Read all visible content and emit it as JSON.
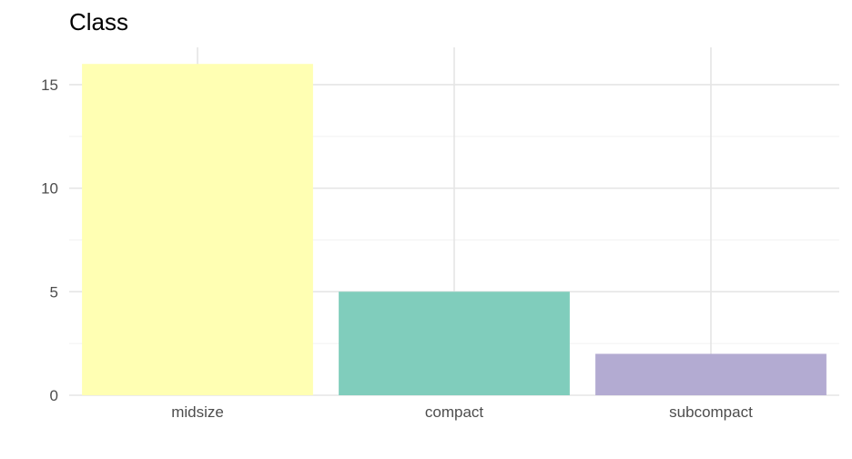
{
  "chart_data": {
    "type": "bar",
    "title": "Class",
    "xlabel": "",
    "ylabel": "",
    "categories": [
      "midsize",
      "compact",
      "subcompact"
    ],
    "values": [
      16,
      5,
      2
    ],
    "colors": [
      "#ffffb3",
      "#80cdbc",
      "#b3abd2"
    ],
    "ylim": [
      0,
      16.8
    ],
    "yticks": [
      0,
      5,
      10,
      15
    ],
    "grid": true,
    "legend": "none"
  }
}
